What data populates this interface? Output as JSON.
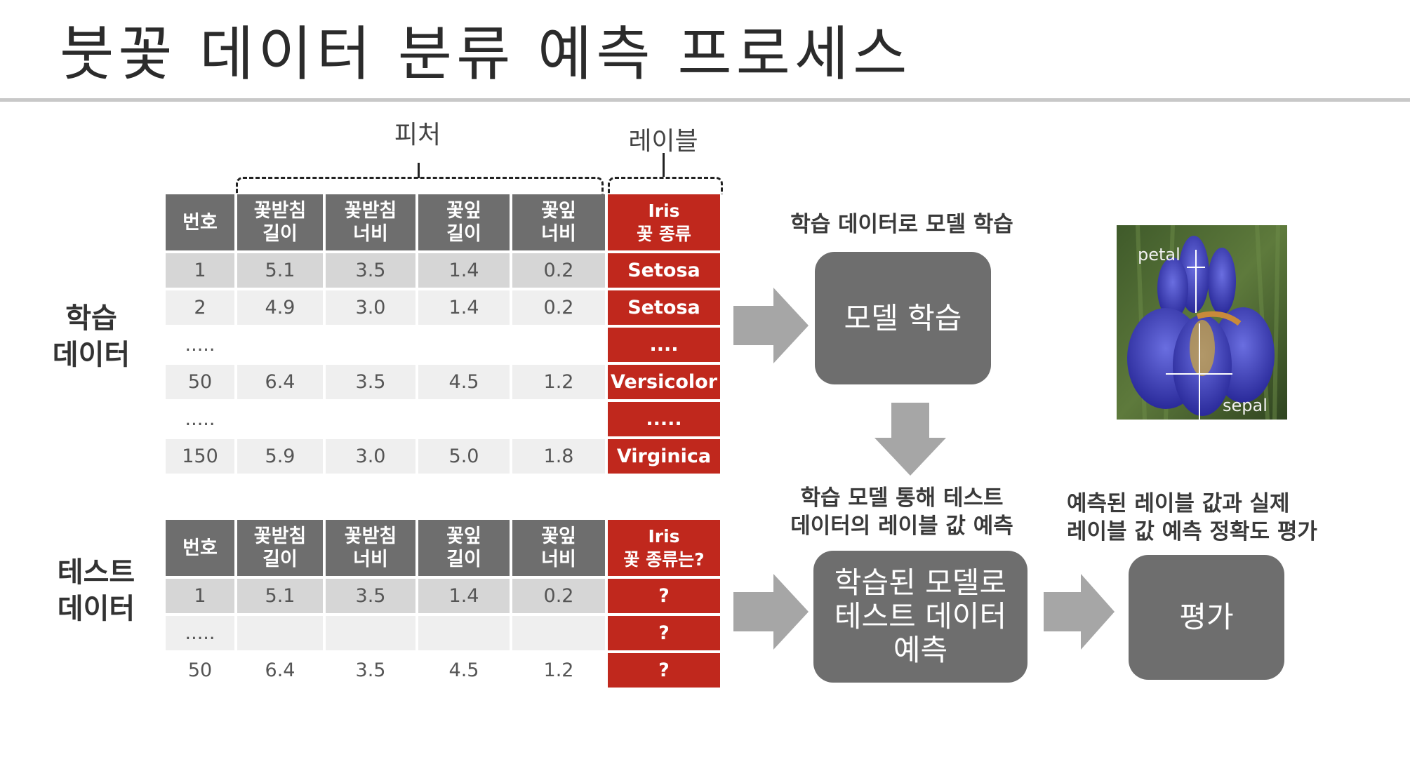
{
  "slide": {
    "title": "붓꽃 데이터 분류 예측 프로세스",
    "feature_label": "피처",
    "label_label": "레이블",
    "train_label": [
      "학습",
      "데이터"
    ],
    "test_label": [
      "테스트",
      "데이터"
    ]
  },
  "train_table": {
    "headers": [
      [
        "번호"
      ],
      [
        "꽃받침",
        "길이"
      ],
      [
        "꽃받침",
        "너비"
      ],
      [
        "꽃잎",
        "길이"
      ],
      [
        "꽃잎",
        "너비"
      ]
    ],
    "label_header": [
      "Iris",
      "꽃 종류"
    ],
    "rows": [
      {
        "cells": [
          "1",
          "5.1",
          "3.5",
          "1.4",
          "0.2"
        ],
        "label": "Setosa"
      },
      {
        "cells": [
          "2",
          "4.9",
          "3.0",
          "1.4",
          "0.2"
        ],
        "label": "Setosa"
      },
      {
        "cells": [
          ".....",
          "",
          "",
          "",
          ""
        ],
        "label": "...."
      },
      {
        "cells": [
          "50",
          "6.4",
          "3.5",
          "4.5",
          "1.2"
        ],
        "label": "Versicolor"
      },
      {
        "cells": [
          ".....",
          "",
          "",
          "",
          ""
        ],
        "label": "....."
      },
      {
        "cells": [
          "150",
          "5.9",
          "3.0",
          "5.0",
          "1.8"
        ],
        "label": "Virginica"
      }
    ]
  },
  "test_table": {
    "headers": [
      [
        "번호"
      ],
      [
        "꽃받침",
        "길이"
      ],
      [
        "꽃받침",
        "너비"
      ],
      [
        "꽃잎",
        "길이"
      ],
      [
        "꽃잎",
        "너비"
      ]
    ],
    "label_header": [
      "Iris",
      "꽃 종류는?"
    ],
    "rows": [
      {
        "cells": [
          "1",
          "5.1",
          "3.5",
          "1.4",
          "0.2"
        ],
        "label": "?"
      },
      {
        "cells": [
          ".....",
          "",
          "",
          "",
          ""
        ],
        "label": "?"
      },
      {
        "cells": [
          "50",
          "6.4",
          "3.5",
          "4.5",
          "1.2"
        ],
        "label": "?"
      }
    ]
  },
  "flow": {
    "train_caption": "학습 데이터로 모델 학습",
    "train_box": "모델 학습",
    "predict_caption": [
      "학습 모델 통해 테스트",
      "데이터의 레이블 값 예측"
    ],
    "predict_box": [
      "학습된 모델로",
      "테스트 데이터",
      "예측"
    ],
    "eval_caption": [
      "예측된 레이블 값과 실제",
      "레이블 값 예측 정확도 평가"
    ],
    "eval_box": "평가"
  },
  "photo": {
    "petal_label": "petal",
    "sepal_label": "sepal"
  },
  "colors": {
    "header_gray": "#6e6e6e",
    "label_red": "#c0281d",
    "arrow_gray": "#a6a6a6",
    "box_gray": "#6e6e6e"
  }
}
